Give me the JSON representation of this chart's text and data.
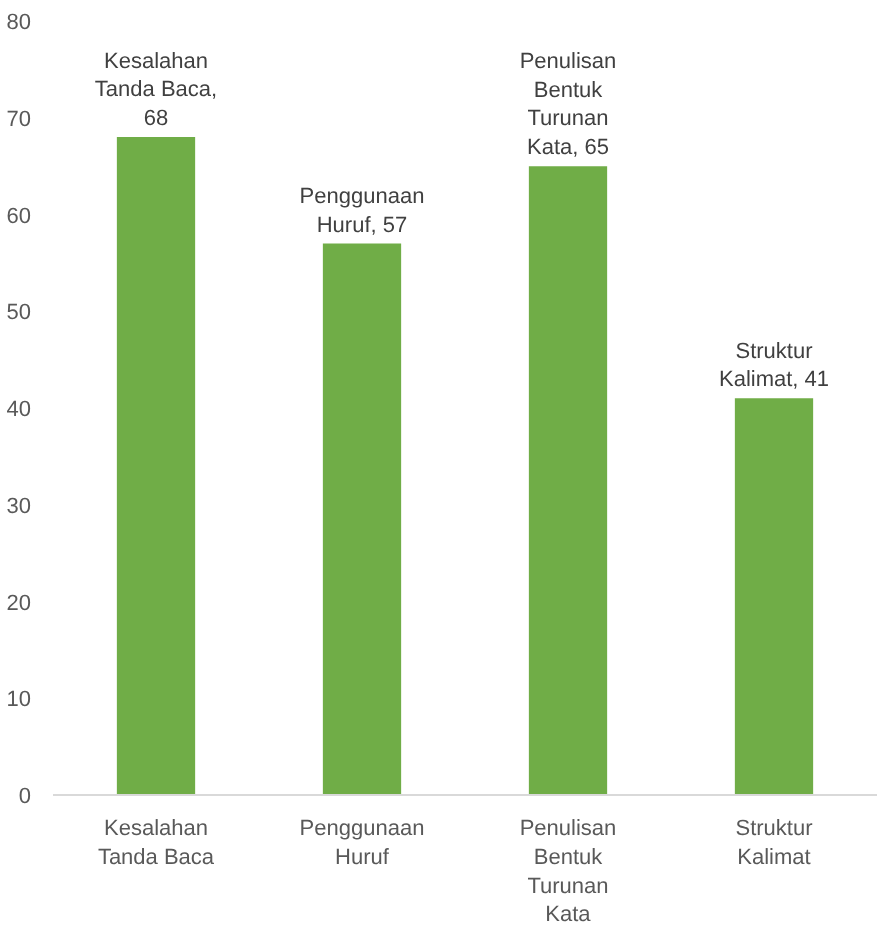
{
  "chart_data": {
    "type": "bar",
    "categories": [
      "Kesalahan Tanda Baca",
      "Penggunaan Huruf",
      "Penulisan Bentuk Turunan Kata",
      "Struktur Kalimat"
    ],
    "values": [
      68,
      57,
      65,
      41
    ],
    "color": "#70ad47",
    "value_labels": [
      "Kesalahan Tanda Baca, 68",
      "Penggunaan Huruf, 57",
      "Penulisan Bentuk Turunan Kata, 65",
      "Struktur Kalimat, 41"
    ],
    "ylim": [
      0,
      80
    ],
    "yticks": [
      0,
      10,
      20,
      30,
      40,
      50,
      60,
      70,
      80
    ],
    "grid": false
  }
}
